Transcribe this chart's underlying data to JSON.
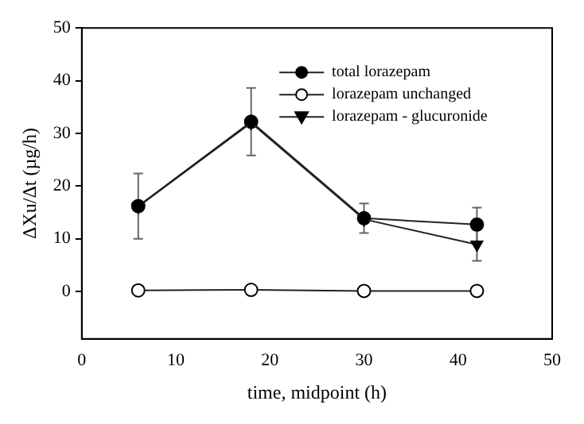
{
  "chart_data": {
    "type": "line",
    "xlabel": "time, midpoint (h)",
    "ylabel": "ΔXu/Δt (µg/h)",
    "x": [
      6,
      18,
      30,
      42
    ],
    "series": [
      {
        "name": "total lorazepam",
        "color": "#000000",
        "marker": "circle",
        "values": [
          16.2,
          32.2,
          13.9,
          12.7
        ],
        "errors": [
          6.2,
          6.4,
          2.8,
          3.2
        ]
      },
      {
        "name": "lorazepam unchanged",
        "color": "#ffffff",
        "marker": "circle",
        "values": [
          0.2,
          0.3,
          0.1,
          0.1
        ]
      },
      {
        "name": "lorazepam - glucuronide",
        "color": "#000000",
        "marker": "triangle",
        "values": [
          16.1,
          32.0,
          13.7,
          8.9
        ],
        "errors": [
          null,
          null,
          null,
          3.1
        ]
      }
    ],
    "xlim": [
      0,
      50
    ],
    "xticks": [
      0,
      10,
      20,
      30,
      40,
      50
    ],
    "ylim": [
      -9,
      50
    ],
    "yticks": [
      0,
      10,
      20,
      30,
      40,
      50
    ],
    "grid": false,
    "legend": "top right"
  }
}
